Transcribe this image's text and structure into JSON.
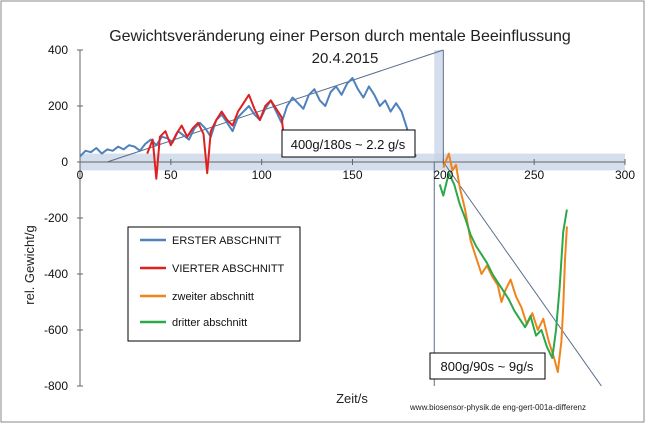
{
  "chart_data": {
    "type": "line",
    "title": "Gewichtsveränderung einer Person durch mentale Beeinflussung",
    "subtitle": "20.4.2015",
    "xlabel": "Zeit/s",
    "ylabel": "rel. Gewicht/g",
    "xlim": [
      0,
      300
    ],
    "ylim": [
      -800,
      400
    ],
    "xticks": [
      0,
      50,
      100,
      150,
      200,
      250,
      300
    ],
    "yticks": [
      400,
      200,
      0,
      -200,
      -400,
      -600,
      -800
    ],
    "grid": false,
    "legend_position": "left-middle",
    "series": [
      {
        "name": "ERSTER ABSCHNITT",
        "color": "#4F81BD",
        "points": [
          [
            0,
            20
          ],
          [
            3,
            40
          ],
          [
            6,
            35
          ],
          [
            9,
            50
          ],
          [
            12,
            30
          ],
          [
            15,
            45
          ],
          [
            18,
            40
          ],
          [
            21,
            55
          ],
          [
            24,
            45
          ],
          [
            27,
            60
          ],
          [
            30,
            55
          ],
          [
            33,
            40
          ],
          [
            36,
            65
          ],
          [
            39,
            80
          ],
          [
            42,
            60
          ],
          [
            45,
            90
          ],
          [
            48,
            85
          ],
          [
            51,
            70
          ],
          [
            54,
            110
          ],
          [
            57,
            95
          ],
          [
            60,
            80
          ],
          [
            63,
            120
          ],
          [
            66,
            140
          ],
          [
            69,
            120
          ],
          [
            72,
            90
          ],
          [
            75,
            150
          ],
          [
            78,
            170
          ],
          [
            81,
            140
          ],
          [
            84,
            110
          ],
          [
            87,
            160
          ],
          [
            90,
            180
          ],
          [
            93,
            200
          ],
          [
            96,
            170
          ],
          [
            99,
            150
          ],
          [
            102,
            190
          ],
          [
            105,
            220
          ],
          [
            108,
            180
          ],
          [
            111,
            140
          ],
          [
            114,
            200
          ],
          [
            117,
            230
          ],
          [
            120,
            210
          ],
          [
            123,
            190
          ],
          [
            126,
            240
          ],
          [
            129,
            260
          ],
          [
            132,
            220
          ],
          [
            135,
            200
          ],
          [
            138,
            250
          ],
          [
            141,
            270
          ],
          [
            144,
            240
          ],
          [
            147,
            280
          ],
          [
            150,
            300
          ],
          [
            153,
            260
          ],
          [
            156,
            230
          ],
          [
            159,
            270
          ],
          [
            162,
            240
          ],
          [
            165,
            200
          ],
          [
            168,
            220
          ],
          [
            171,
            180
          ],
          [
            174,
            210
          ],
          [
            177,
            180
          ],
          [
            180,
            120
          ],
          [
            183,
            40
          ],
          [
            185,
            20
          ]
        ]
      },
      {
        "name": "VIERTER ABSCHNITT",
        "color": "#E02020",
        "points": [
          [
            37,
            30
          ],
          [
            40,
            80
          ],
          [
            42,
            -60
          ],
          [
            44,
            90
          ],
          [
            47,
            110
          ],
          [
            50,
            60
          ],
          [
            53,
            100
          ],
          [
            56,
            130
          ],
          [
            59,
            90
          ],
          [
            62,
            120
          ],
          [
            65,
            140
          ],
          [
            68,
            100
          ],
          [
            70,
            -40
          ],
          [
            72,
            110
          ],
          [
            75,
            150
          ],
          [
            78,
            180
          ],
          [
            81,
            150
          ],
          [
            84,
            130
          ],
          [
            87,
            180
          ],
          [
            90,
            210
          ],
          [
            93,
            240
          ],
          [
            96,
            190
          ],
          [
            99,
            150
          ],
          [
            102,
            200
          ],
          [
            105,
            220
          ],
          [
            108,
            190
          ],
          [
            111,
            160
          ],
          [
            112,
            100
          ]
        ]
      },
      {
        "name": "zweiter abschnitt",
        "color": "#F0841C",
        "points": [
          [
            200,
            -20
          ],
          [
            203,
            30
          ],
          [
            205,
            -30
          ],
          [
            207,
            -10
          ],
          [
            209,
            -90
          ],
          [
            212,
            -170
          ],
          [
            215,
            -280
          ],
          [
            218,
            -340
          ],
          [
            221,
            -400
          ],
          [
            224,
            -370
          ],
          [
            227,
            -410
          ],
          [
            230,
            -440
          ],
          [
            232,
            -500
          ],
          [
            234,
            -460
          ],
          [
            237,
            -420
          ],
          [
            240,
            -480
          ],
          [
            243,
            -520
          ],
          [
            246,
            -580
          ],
          [
            249,
            -540
          ],
          [
            252,
            -600
          ],
          [
            255,
            -560
          ],
          [
            258,
            -640
          ],
          [
            261,
            -700
          ],
          [
            263,
            -750
          ],
          [
            265,
            -640
          ],
          [
            266,
            -520
          ],
          [
            267,
            -350
          ],
          [
            268,
            -230
          ]
        ]
      },
      {
        "name": "dritter abschnitt",
        "color": "#2BA84A",
        "points": [
          [
            198,
            -80
          ],
          [
            200,
            -120
          ],
          [
            203,
            -40
          ],
          [
            206,
            -80
          ],
          [
            209,
            -150
          ],
          [
            212,
            -200
          ],
          [
            215,
            -260
          ],
          [
            218,
            -300
          ],
          [
            221,
            -330
          ],
          [
            224,
            -360
          ],
          [
            227,
            -400
          ],
          [
            230,
            -430
          ],
          [
            233,
            -460
          ],
          [
            236,
            -490
          ],
          [
            239,
            -530
          ],
          [
            242,
            -560
          ],
          [
            245,
            -590
          ],
          [
            248,
            -550
          ],
          [
            251,
            -620
          ],
          [
            254,
            -600
          ],
          [
            257,
            -660
          ],
          [
            260,
            -700
          ],
          [
            262,
            -600
          ],
          [
            264,
            -450
          ],
          [
            266,
            -250
          ],
          [
            268,
            -170
          ]
        ]
      }
    ],
    "annotations": [
      {
        "text": "400g/180s ~ 2.2 g/s",
        "x": 110,
        "y": 60
      },
      {
        "text": "800g/90s ~ 9g/s",
        "x": 195,
        "y": -720
      }
    ],
    "trend_lines": [
      {
        "from": [
          15,
          0
        ],
        "to": [
          200,
          400
        ]
      },
      {
        "from": [
          200,
          0
        ],
        "to": [
          287,
          -800
        ]
      }
    ],
    "shaded_regions": [
      {
        "x_range": [
          0,
          300
        ],
        "y_range": [
          -30,
          30
        ]
      },
      {
        "x_range": [
          195,
          200
        ],
        "y_range": [
          0,
          400
        ]
      }
    ],
    "footer": "www.biosensor-physik.de  eng-gert-001a-differenz"
  }
}
